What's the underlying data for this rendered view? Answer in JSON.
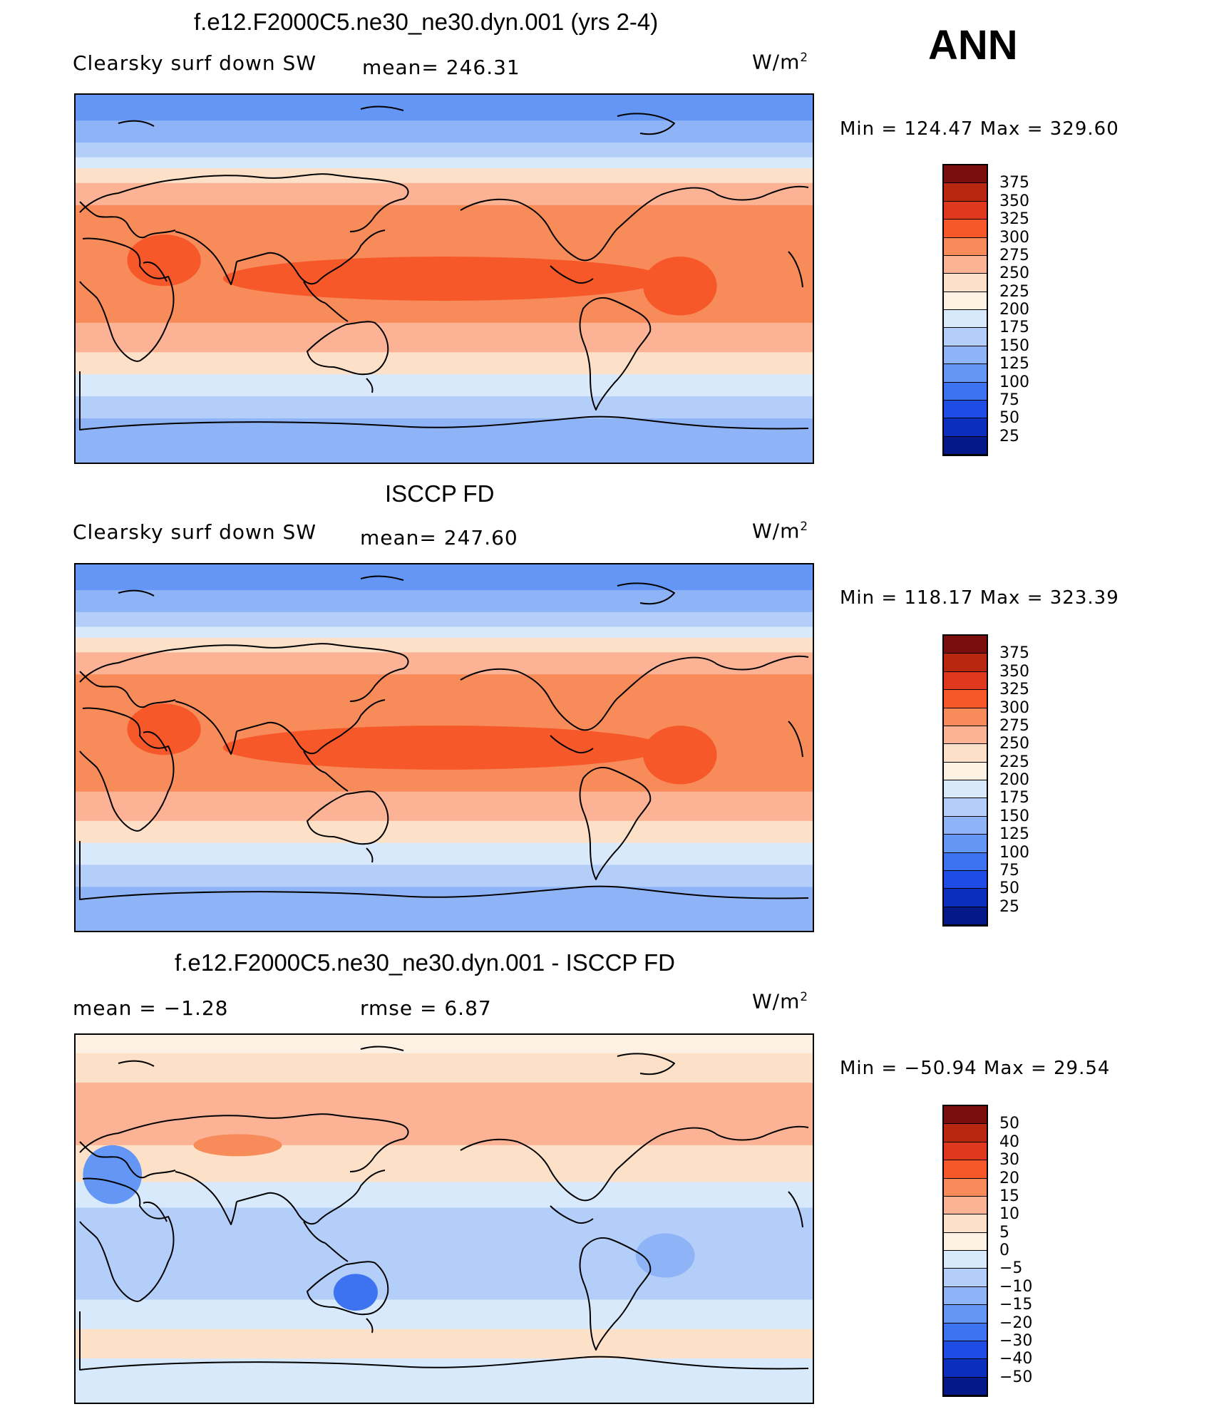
{
  "season": "ANN",
  "panels": [
    {
      "title": "f.e12.F2000C5.ne30_ne30.dyn.001 (yrs 2-4)",
      "left_label": "Clearsky surf down SW",
      "center_label": "mean= 246.31",
      "units": "W/m",
      "units_sup": "2",
      "min_max": "Min = 124.47 Max = 329.60",
      "colorbar": {
        "labels": [
          "375",
          "350",
          "325",
          "300",
          "275",
          "250",
          "225",
          "200",
          "175",
          "150",
          "125",
          "100",
          "75",
          "50",
          "25"
        ],
        "colors": [
          "#7a0d0d",
          "#b82710",
          "#e0381e",
          "#f6582a",
          "#f88b5a",
          "#fbb295",
          "#fde0c8",
          "#fdf1e3",
          "#d8e9fb",
          "#b4cefa",
          "#8fb3f7",
          "#6496f5",
          "#3d73f0",
          "#1f4ce4",
          "#0b2ebe",
          "#05188a"
        ]
      },
      "palette": "abs"
    },
    {
      "title": "ISCCP FD",
      "left_label": "Clearsky surf down SW",
      "center_label": "mean= 247.60",
      "units": "W/m",
      "units_sup": "2",
      "min_max": "Min = 118.17 Max = 323.39",
      "colorbar": {
        "labels": [
          "375",
          "350",
          "325",
          "300",
          "275",
          "250",
          "225",
          "200",
          "175",
          "150",
          "125",
          "100",
          "75",
          "50",
          "25"
        ],
        "colors": [
          "#7a0d0d",
          "#b82710",
          "#e0381e",
          "#f6582a",
          "#f88b5a",
          "#fbb295",
          "#fde0c8",
          "#fdf1e3",
          "#d8e9fb",
          "#b4cefa",
          "#8fb3f7",
          "#6496f5",
          "#3d73f0",
          "#1f4ce4",
          "#0b2ebe",
          "#05188a"
        ]
      },
      "palette": "abs"
    },
    {
      "title": "f.e12.F2000C5.ne30_ne30.dyn.001 - ISCCP FD",
      "left_label": "mean =   −1.28",
      "center_label": "rmse =    6.87",
      "units": "W/m",
      "units_sup": "2",
      "min_max": "Min = −50.94 Max =   29.54",
      "colorbar": {
        "labels": [
          "50",
          "40",
          "30",
          "20",
          "15",
          "10",
          "5",
          "0",
          "−5",
          "−10",
          "−15",
          "−20",
          "−30",
          "−40",
          "−50"
        ],
        "colors": [
          "#7a0d0d",
          "#b82710",
          "#e0381e",
          "#f6582a",
          "#f88b5a",
          "#fbb295",
          "#fde0c8",
          "#fdf1e3",
          "#d8e9fb",
          "#b4cefa",
          "#8fb3f7",
          "#6496f5",
          "#3d73f0",
          "#1f4ce4",
          "#0b2ebe",
          "#05188a"
        ]
      },
      "palette": "diff"
    }
  ]
}
